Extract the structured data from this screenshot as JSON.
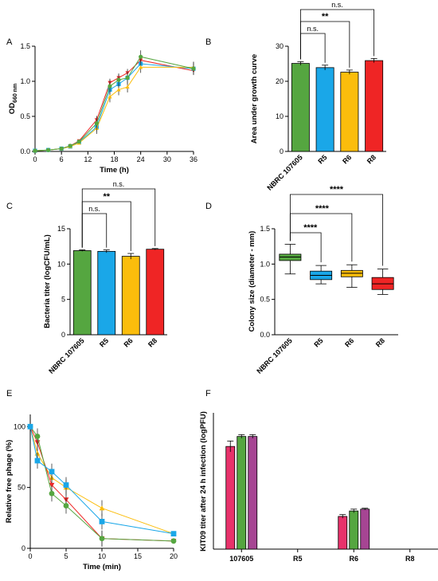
{
  "colors": {
    "green": "#55a640",
    "blue": "#1aa7e8",
    "yellow": "#fbbd0c",
    "red": "#ef2525",
    "pink": "#e8326b",
    "purple": "#a64593",
    "black": "#000000"
  },
  "chart_data": [
    {
      "id": "A",
      "panel_label": "A",
      "type": "line",
      "xlabel": "Time (h)",
      "ylabel_main": "OD",
      "ylabel_sub": "660 nm",
      "xlim": [
        0,
        36
      ],
      "ylim": [
        0,
        1.5
      ],
      "xticks": [
        "0",
        "6",
        "12",
        "18",
        "24",
        "30",
        "36"
      ],
      "yticks": [
        "0.0",
        "0.5",
        "1.0",
        "1.5"
      ],
      "x": [
        0,
        3,
        6,
        8,
        10,
        14,
        17,
        19,
        21,
        24,
        36
      ],
      "series": [
        {
          "color": "red",
          "marker": "triangle-down",
          "values": [
            0.01,
            0.02,
            0.04,
            0.08,
            0.15,
            0.45,
            0.98,
            1.05,
            1.12,
            1.3,
            1.15
          ]
        },
        {
          "color": "blue",
          "marker": "square",
          "values": [
            0.01,
            0.02,
            0.04,
            0.07,
            0.13,
            0.35,
            0.88,
            0.96,
            1.05,
            1.25,
            1.18
          ]
        },
        {
          "color": "yellow",
          "marker": "triangle-up",
          "values": [
            0.01,
            0.02,
            0.04,
            0.07,
            0.12,
            0.33,
            0.78,
            0.88,
            0.92,
            1.2,
            1.2
          ]
        },
        {
          "color": "green",
          "marker": "circle",
          "values": [
            0.01,
            0.02,
            0.04,
            0.08,
            0.14,
            0.4,
            0.93,
            1.02,
            1.05,
            1.35,
            1.18
          ]
        }
      ]
    },
    {
      "id": "B",
      "panel_label": "B",
      "type": "bar",
      "ylabel": "Area under growth curve",
      "ylim": [
        0,
        30
      ],
      "yticks": [
        "0",
        "10",
        "20",
        "30"
      ],
      "categories": [
        "NBRC 107605",
        "R5",
        "R6",
        "R8"
      ],
      "values": [
        25.1,
        23.9,
        22.6,
        25.9
      ],
      "errors": [
        0.5,
        0.7,
        0.6,
        0.6
      ],
      "colors": [
        "green",
        "blue",
        "yellow",
        "red"
      ],
      "annotations": [
        {
          "from": 0,
          "to": 1,
          "text": "n.s."
        },
        {
          "from": 0,
          "to": 2,
          "text": "**"
        },
        {
          "from": 0,
          "to": 3,
          "text": "n.s."
        }
      ]
    },
    {
      "id": "C",
      "panel_label": "C",
      "type": "bar",
      "ylabel": "Bacteria titer (logCFU/mL)",
      "ylim": [
        0,
        15
      ],
      "yticks": [
        "0",
        "5",
        "10",
        "15"
      ],
      "categories": [
        "NBRC 107605",
        "R5",
        "R6",
        "R8"
      ],
      "values": [
        11.9,
        11.8,
        11.1,
        12.1
      ],
      "errors": [
        0.1,
        0.2,
        0.4,
        0.1
      ],
      "colors": [
        "green",
        "blue",
        "yellow",
        "red"
      ],
      "annotations": [
        {
          "from": 0,
          "to": 1,
          "text": "n.s."
        },
        {
          "from": 0,
          "to": 2,
          "text": "**"
        },
        {
          "from": 0,
          "to": 3,
          "text": "n.s."
        }
      ]
    },
    {
      "id": "D",
      "panel_label": "D",
      "type": "box",
      "ylabel": "Colony size (diameter - mm)",
      "ylim": [
        0,
        1.5
      ],
      "yticks": [
        "0.0",
        "0.5",
        "1.0",
        "1.5"
      ],
      "categories": [
        "NBRC 107605",
        "R5",
        "R6",
        "R8"
      ],
      "boxes": [
        {
          "min": 0.86,
          "q1": 1.05,
          "median": 1.1,
          "q3": 1.14,
          "max": 1.28
        },
        {
          "min": 0.72,
          "q1": 0.78,
          "median": 0.84,
          "q3": 0.9,
          "max": 0.98
        },
        {
          "min": 0.67,
          "q1": 0.82,
          "median": 0.87,
          "q3": 0.91,
          "max": 0.99
        },
        {
          "min": 0.57,
          "q1": 0.64,
          "median": 0.72,
          "q3": 0.81,
          "max": 0.93
        }
      ],
      "colors": [
        "green",
        "blue",
        "yellow",
        "red"
      ],
      "annotations": [
        {
          "from": 0,
          "to": 1,
          "text": "****"
        },
        {
          "from": 0,
          "to": 2,
          "text": "****"
        },
        {
          "from": 0,
          "to": 3,
          "text": "****"
        }
      ]
    },
    {
      "id": "E",
      "panel_label": "E",
      "type": "line",
      "xlabel": "Time (min)",
      "ylabel": "Relative free phage (%)",
      "xlim": [
        0,
        20
      ],
      "ylim": [
        0,
        110
      ],
      "xticks": [
        "0",
        "5",
        "10",
        "15",
        "20"
      ],
      "yticks": [
        "0",
        "50",
        "100"
      ],
      "x": [
        0,
        1,
        3,
        5,
        10,
        20
      ],
      "series": [
        {
          "color": "yellow",
          "marker": "triangle-up",
          "values": [
            100,
            78,
            58,
            50,
            33,
            12
          ]
        },
        {
          "color": "red",
          "marker": "triangle-down",
          "values": [
            100,
            87,
            52,
            40,
            8,
            6
          ]
        },
        {
          "color": "green",
          "marker": "circle",
          "values": [
            100,
            92,
            45,
            35,
            8,
            6
          ]
        },
        {
          "color": "blue",
          "marker": "square",
          "values": [
            100,
            72,
            63,
            52,
            22,
            12
          ]
        }
      ]
    },
    {
      "id": "F",
      "panel_label": "F",
      "type": "bar",
      "ylabel": "KIT09 titer after 24 h infection (logPFU)",
      "ylim": [
        0,
        15
      ],
      "categories": [
        "107605",
        "R5",
        "R6",
        "R8"
      ],
      "series_colors": [
        "pink",
        "green",
        "purple"
      ],
      "values": [
        [
          11.3,
          12.4,
          12.4
        ],
        [
          0,
          0,
          0
        ],
        [
          3.6,
          4.2,
          4.4
        ],
        [
          0,
          0,
          0
        ]
      ],
      "errors": [
        [
          0.6,
          0.2,
          0.2
        ],
        [
          0,
          0,
          0
        ],
        [
          0.2,
          0.2,
          0.1
        ],
        [
          0,
          0,
          0
        ]
      ]
    }
  ]
}
